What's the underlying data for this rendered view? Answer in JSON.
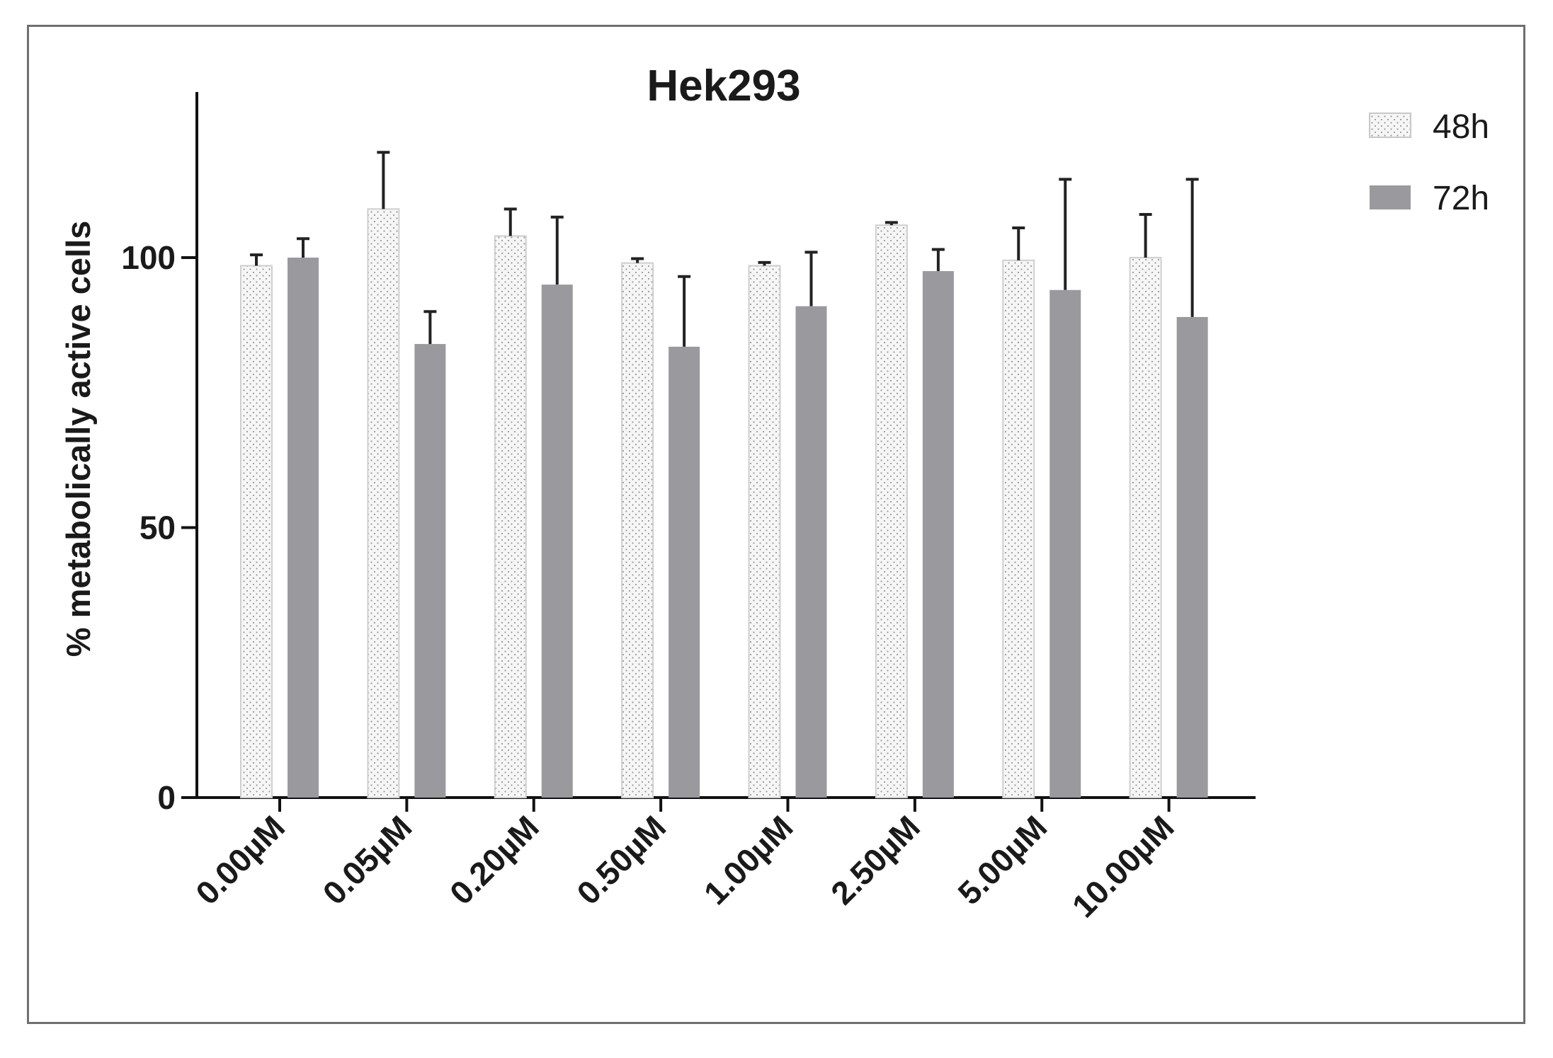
{
  "chart_data": {
    "type": "bar",
    "title": "Hek293",
    "xlabel": "",
    "ylabel": "% metabolically active cells",
    "ylim": [
      0,
      130
    ],
    "yticks": [
      0,
      50,
      100
    ],
    "categories": [
      "0.00µM",
      "0.05µM",
      "0.20µM",
      "0.50µM",
      "1.00µM",
      "2.50µM",
      "5.00µM",
      "10.00µM"
    ],
    "series": [
      {
        "name": "48h",
        "fill": "dotted-white",
        "color": "#f4f4f4",
        "values": [
          98.5,
          109.0,
          104.0,
          99.0,
          98.5,
          106.0,
          99.5,
          100.0
        ],
        "errors": [
          2.0,
          10.5,
          5.0,
          0.8,
          0.6,
          0.5,
          6.0,
          8.0
        ]
      },
      {
        "name": "72h",
        "fill": "solid",
        "color": "#9a9a9e",
        "values": [
          100.0,
          84.0,
          95.0,
          83.5,
          91.0,
          97.5,
          94.0,
          89.0
        ],
        "errors": [
          3.5,
          6.0,
          12.5,
          13.0,
          10.0,
          4.0,
          20.5,
          25.5
        ]
      }
    ],
    "grid": false,
    "legend": "top-right"
  }
}
